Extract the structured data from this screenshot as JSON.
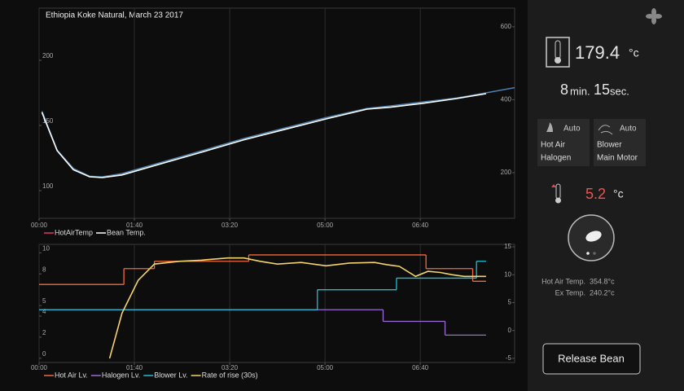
{
  "chart_data": [
    {
      "type": "line",
      "title": "Ethiopia Koke Natural, March 23 2017",
      "xlim": [
        0,
        499
      ],
      "xticks": [
        {
          "value": 0,
          "label": "00:00"
        },
        {
          "value": 100,
          "label": "01:40"
        },
        {
          "value": 200,
          "label": "03:20"
        },
        {
          "value": 300,
          "label": "05:00"
        },
        {
          "value": 400,
          "label": "06:40"
        }
      ],
      "ylim": [
        78.75,
        240
      ],
      "yticks": [
        100,
        150,
        200
      ],
      "y2lim": [
        75,
        651
      ],
      "y2ticks": [
        200,
        400,
        600
      ],
      "y2_color": "#d6336c",
      "grid": true,
      "legend": [
        {
          "name": "HotAirTemp",
          "color": "#e8336b"
        },
        {
          "name": "Bean Temp.",
          "color": "#ffffff"
        }
      ],
      "series": [
        {
          "color": "#4f7fb0",
          "x": [
            3,
            19,
            36,
            53,
            66,
            87,
            130,
            173,
            215,
            258,
            301,
            344,
            369,
            403,
            438,
            469,
            499
          ],
          "values": [
            161,
            131,
            117,
            111,
            110.5,
            113,
            122,
            131,
            140,
            148,
            156,
            163,
            165,
            168,
            171,
            175,
            179
          ]
        },
        {
          "color": "#ffffff",
          "x": [
            3,
            19,
            36,
            53,
            66,
            87,
            130,
            173,
            215,
            258,
            301,
            344,
            369,
            403,
            438,
            469
          ],
          "values": [
            160,
            130.6,
            116,
            110.6,
            110,
            112,
            121,
            130,
            139,
            147,
            155,
            162.5,
            164,
            167,
            170.6,
            174.4
          ]
        }
      ]
    },
    {
      "type": "line",
      "xlim": [
        0,
        499
      ],
      "xticks": [
        {
          "value": 0,
          "label": "00:00"
        },
        {
          "value": 100,
          "label": "01:40"
        },
        {
          "value": 200,
          "label": "03:20"
        },
        {
          "value": 300,
          "label": "05:00"
        },
        {
          "value": 400,
          "label": "06:40"
        }
      ],
      "ylim": [
        -0.4,
        10.8
      ],
      "yticks": [
        0,
        2,
        4,
        5,
        8,
        10
      ],
      "y2lim": [
        -5.74,
        15.44
      ],
      "y2ticks": [
        -5,
        0,
        5,
        10,
        15
      ],
      "y2_color": "#e8a64a",
      "grid": true,
      "series": [
        {
          "name": "Hot Air Lv.",
          "color": "#f06a3c",
          "step": true,
          "edges": [
            0,
            89,
            121,
            220,
            406,
            455,
            469
          ],
          "values": [
            7,
            8.5,
            9.2,
            9.8,
            8.5,
            7.3
          ]
        },
        {
          "name": "Halogen Lv.",
          "color": "#9b6bd6",
          "step": true,
          "edges": [
            0,
            361,
            426,
            469
          ],
          "values": [
            4.6,
            3.5,
            2.2
          ]
        },
        {
          "name": "Blower Lv.",
          "color": "#23bcd0",
          "step": true,
          "edges": [
            0,
            292,
            375,
            459,
            469
          ],
          "values": [
            4.6,
            6.5,
            7.6,
            9.2
          ]
        },
        {
          "name": "Rate of rise (30s)",
          "color": "#f3d36b",
          "axis": "y2",
          "x": [
            74,
            87,
            104,
            121,
            147,
            170,
            198,
            215,
            232,
            250,
            275,
            301,
            326,
            352,
            365,
            378,
            395,
            408,
            421,
            433,
            446,
            469
          ],
          "values": [
            -5,
            3.1,
            9,
            11.9,
            12.4,
            12.6,
            13,
            13,
            12.4,
            11.9,
            12.2,
            11.6,
            12.1,
            12.2,
            11.8,
            11.5,
            9.7,
            10.6,
            10.4,
            10,
            9.7,
            9.7
          ]
        }
      ]
    }
  ],
  "panel": {
    "temperature": {
      "value": "179.4",
      "unit": "°c"
    },
    "time": {
      "minutes": "8",
      "min_label": "min.",
      "seconds": "15",
      "sec_label": "sec."
    },
    "modes": [
      {
        "mode": "Auto",
        "lines": [
          "Hot Air",
          "Halogen"
        ]
      },
      {
        "mode": "Auto",
        "lines": [
          "Blower",
          "Main Motor"
        ]
      }
    ],
    "ror": {
      "value": "5.2",
      "unit": "°c"
    },
    "readings": [
      {
        "label": "Hot Air Temp.",
        "value": "354.8°c"
      },
      {
        "label": "Ex Temp.",
        "value": "240.2°c"
      }
    ],
    "button": "Release Bean"
  }
}
